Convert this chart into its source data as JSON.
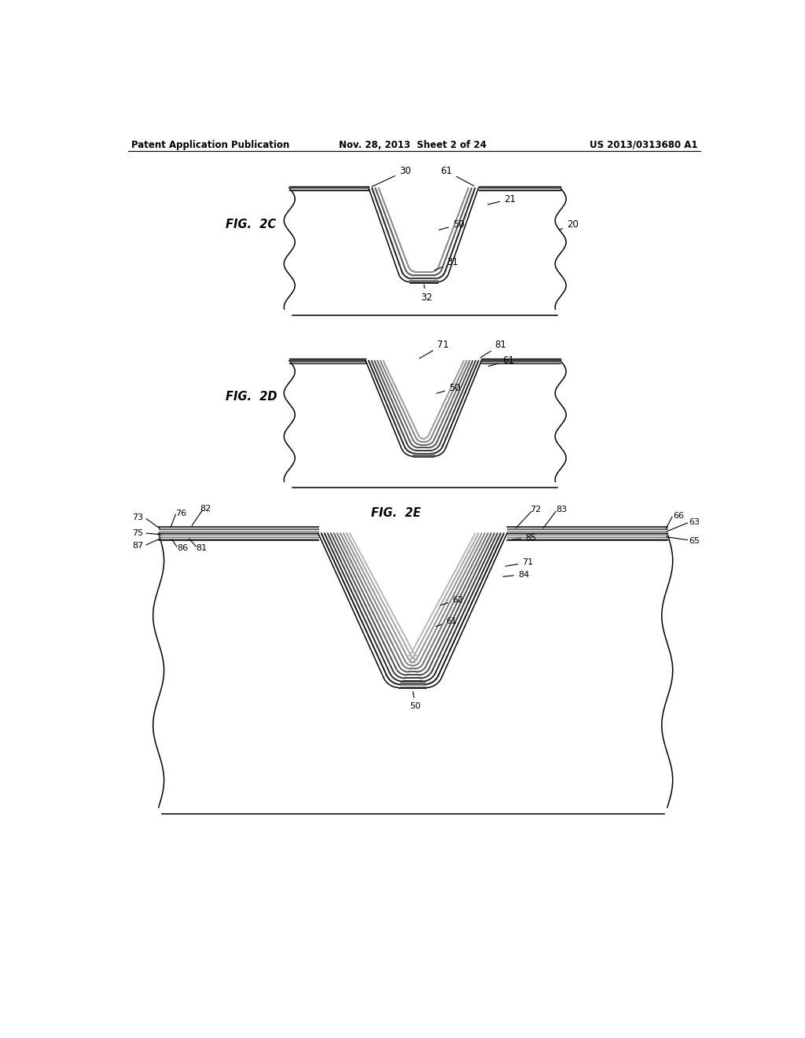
{
  "header_left": "Patent Application Publication",
  "header_mid": "Nov. 28, 2013  Sheet 2 of 24",
  "header_right": "US 2013/0313680 A1",
  "fig2c_label": "FIG.  2C",
  "fig2d_label": "FIG.  2D",
  "fig2e_label": "FIG.  2E",
  "background": "#ffffff",
  "line_color": "#000000"
}
